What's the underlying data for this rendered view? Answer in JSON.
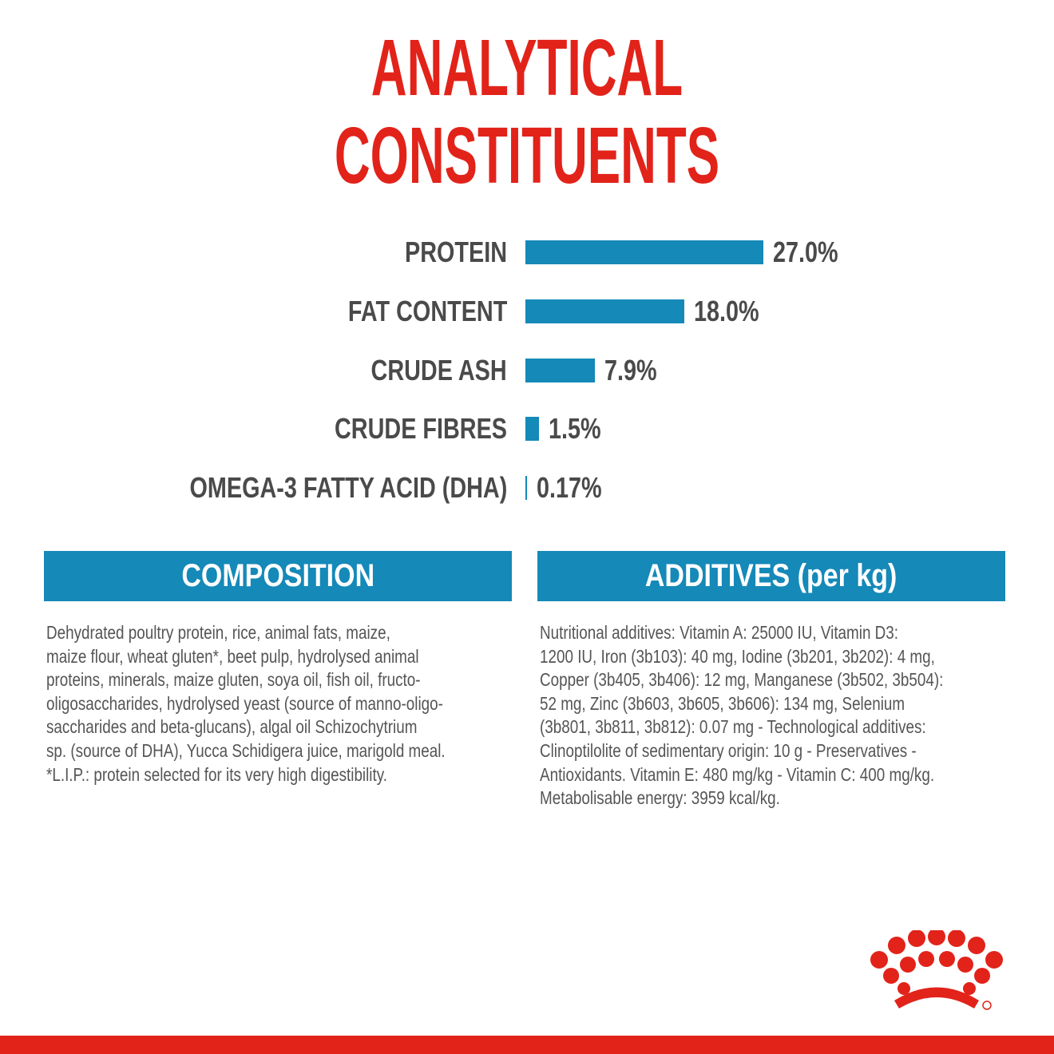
{
  "chart_data": {
    "type": "bar",
    "title": "ANALYTICAL CONSTITUENTS",
    "categories": [
      "PROTEIN",
      "FAT CONTENT",
      "CRUDE ASH",
      "CRUDE FIBRES",
      "OMEGA-3 FATTY ACID (DHA)"
    ],
    "values": [
      27.0,
      18.0,
      7.9,
      1.5,
      0.17
    ],
    "value_labels": [
      "27.0%",
      "18.0%",
      "7.9%",
      "1.5%",
      "0.17%"
    ],
    "color": "#1589b8"
  },
  "composition": {
    "title": "COMPOSITION",
    "lines": [
      "Dehydrated poultry protein, rice, animal fats, maize,",
      "maize flour, wheat gluten*, beet pulp, hydrolysed animal",
      "proteins, minerals, maize gluten, soya oil, fish oil, fructo-",
      "oligosaccharides, hydrolysed yeast (source of manno-oligo-",
      "saccharides and beta-glucans), algal oil Schizochytrium",
      "sp. (source of DHA), Yucca Schidigera juice, marigold meal.",
      "*L.I.P.: protein selected for its very high digestibility."
    ]
  },
  "additives": {
    "title": "ADDITIVES (per kg)",
    "lines": [
      "Nutritional additives: Vitamin A: 25000 IU, Vitamin D3:",
      "1200 IU, Iron (3b103): 40 mg, Iodine (3b201, 3b202): 4 mg,",
      "Copper (3b405, 3b406): 12 mg, Manganese (3b502, 3b504):",
      "52 mg, Zinc (3b603, 3b605, 3b606): 134 mg, Selenium",
      "(3b801, 3b811, 3b812): 0.07 mg - Technological additives:",
      "Clinoptilolite of sedimentary origin: 10 g - Preservatives -",
      "Antioxidants. Vitamin E: 480 mg/kg - Vitamin C: 400 mg/kg.",
      "Metabolisable energy: 3959 kcal/kg."
    ]
  }
}
